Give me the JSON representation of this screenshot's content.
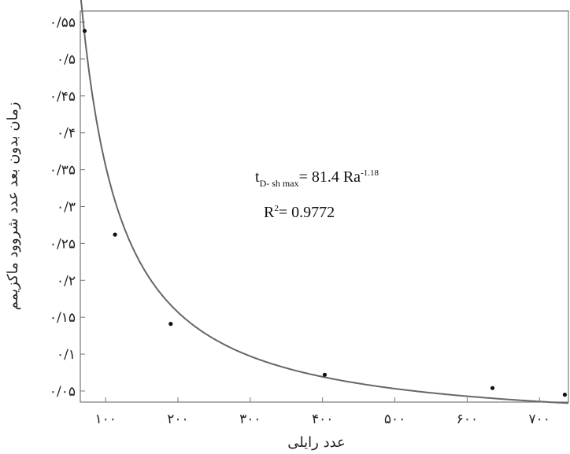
{
  "chart_data": {
    "type": "scatter",
    "title": "",
    "xlabel": "عدد رایلی",
    "ylabel": "زمان بدون بعد عدد شروود ماکزیمم",
    "xlim": [
      65,
      740
    ],
    "ylim": [
      0.035,
      0.565
    ],
    "x_ticks": [
      {
        "value": 100,
        "label": "۱۰۰"
      },
      {
        "value": 200,
        "label": "۲۰۰"
      },
      {
        "value": 300,
        "label": "۳۰۰"
      },
      {
        "value": 400,
        "label": "۴۰۰"
      },
      {
        "value": 500,
        "label": "۵۰۰"
      },
      {
        "value": 600,
        "label": "۶۰۰"
      },
      {
        "value": 700,
        "label": "۷۰۰"
      }
    ],
    "y_ticks": [
      {
        "value": 0.05,
        "label": "۰/۰۵"
      },
      {
        "value": 0.1,
        "label": "۰/۱"
      },
      {
        "value": 0.15,
        "label": "۰/۱۵"
      },
      {
        "value": 0.2,
        "label": "۰/۲"
      },
      {
        "value": 0.25,
        "label": "۰/۲۵"
      },
      {
        "value": 0.3,
        "label": "۰/۳"
      },
      {
        "value": 0.35,
        "label": "۰/۳۵"
      },
      {
        "value": 0.4,
        "label": "۰/۴"
      },
      {
        "value": 0.45,
        "label": "۰/۴۵"
      },
      {
        "value": 0.5,
        "label": "۰/۵"
      },
      {
        "value": 0.55,
        "label": "۰/۵۵"
      }
    ],
    "series": [
      {
        "points": [
          {
            "x": 71,
            "y": 0.538
          },
          {
            "x": 113,
            "y": 0.262
          },
          {
            "x": 190,
            "y": 0.141
          },
          {
            "x": 403,
            "y": 0.072
          },
          {
            "x": 635,
            "y": 0.054
          },
          {
            "x": 735,
            "y": 0.045
          }
        ],
        "color": "#111111"
      }
    ],
    "fit": {
      "type": "power",
      "a": 81.4,
      "b": -1.18,
      "color": "#666666"
    },
    "annotation": {
      "eq_lhs": "t",
      "eq_sub": "D- sh max",
      "eq_rhs": "= 81.4 Ra",
      "eq_sup": "-1.18",
      "r2_label": "R",
      "r2_sup": "2",
      "r2_value": "= 0.9772"
    },
    "grid": false,
    "legend": "none"
  }
}
